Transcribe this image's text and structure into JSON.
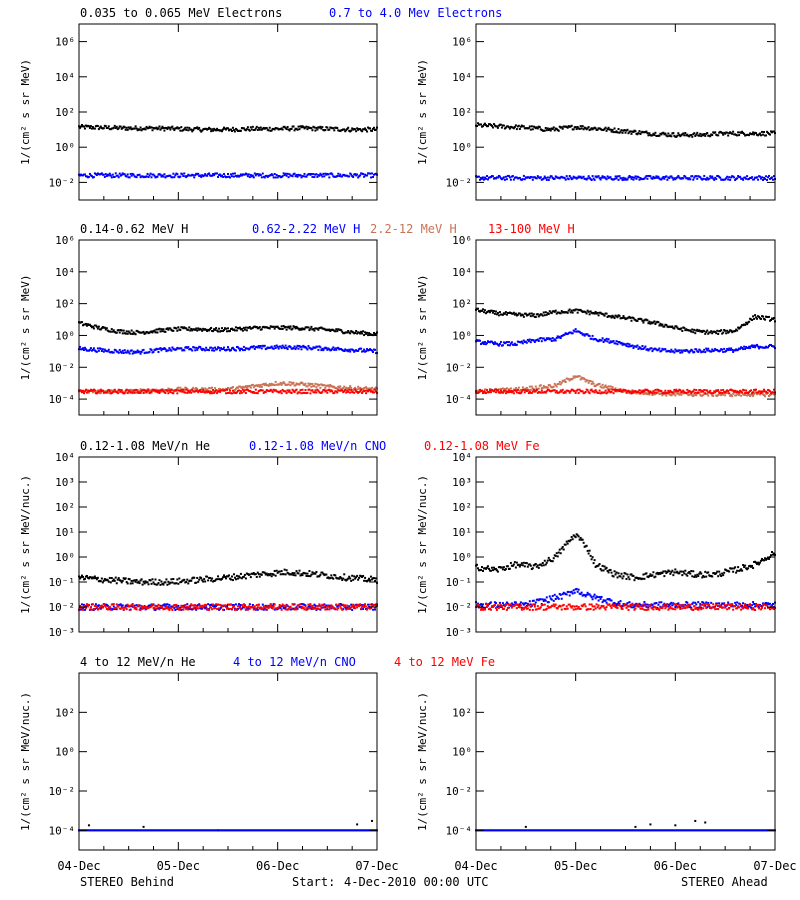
{
  "colors": {
    "black": "#000000",
    "blue": "#0000ff",
    "tan": "#c87355",
    "red": "#ff0000",
    "background": "#ffffff"
  },
  "footer": {
    "left_label": "STEREO Behind",
    "start_label": "Start:",
    "start_value": "4-Dec-2010 00:00 UTC",
    "right_label": "STEREO Ahead"
  },
  "chart_data": [
    {
      "id": "electrons",
      "type": "scatter",
      "ylabel": "1/(cm² s sr MeV)",
      "yscale": "log",
      "ylim": [
        0.001,
        10000000
      ],
      "yticks": [
        "10⁻²",
        "10⁰",
        "10²",
        "10⁴",
        "10⁶"
      ],
      "ytick_values": [
        0.01,
        1,
        100,
        10000,
        1000000
      ],
      "x_range_days": [
        0,
        3
      ],
      "xticks": [
        "04-Dec",
        "05-Dec",
        "06-Dec",
        "07-Dec"
      ],
      "legend": [
        {
          "text": "0.035 to 0.065 MeV Electrons",
          "color": "#000000"
        },
        {
          "text": "0.7 to 4.0 Mev Electrons",
          "color": "#0000ff"
        }
      ],
      "behind": [
        {
          "name": "0.035 to 0.065 MeV Electrons",
          "color": "#000000",
          "x": [
            0,
            0.25,
            0.5,
            0.75,
            1.0,
            1.25,
            1.5,
            1.75,
            2.0,
            2.25,
            2.5,
            2.75,
            3.0
          ],
          "y": [
            14,
            13,
            12,
            12,
            11,
            10,
            10,
            11,
            11,
            12,
            11,
            10,
            10
          ]
        },
        {
          "name": "0.7 to 4.0 Mev Electrons",
          "color": "#0000ff",
          "x": [
            0,
            0.5,
            1.0,
            1.5,
            2.0,
            2.5,
            3.0
          ],
          "y": [
            0.025,
            0.025,
            0.025,
            0.025,
            0.025,
            0.025,
            0.025
          ]
        }
      ],
      "ahead": [
        {
          "name": "0.035 to 0.065 MeV Electrons",
          "color": "#000000",
          "x": [
            0,
            0.25,
            0.5,
            0.75,
            1.0,
            1.25,
            1.5,
            1.75,
            2.0,
            2.25,
            2.5,
            2.75,
            3.0
          ],
          "y": [
            18,
            15,
            13,
            10,
            14,
            11,
            8,
            6,
            5,
            5,
            6,
            6,
            6
          ]
        },
        {
          "name": "0.7 to 4.0 Mev Electrons",
          "color": "#0000ff",
          "x": [
            0,
            0.5,
            1.0,
            1.5,
            2.0,
            2.5,
            3.0
          ],
          "y": [
            0.018,
            0.018,
            0.018,
            0.018,
            0.018,
            0.018,
            0.018
          ]
        }
      ]
    },
    {
      "id": "protons",
      "type": "scatter",
      "ylabel": "1/(cm² s sr MeV)",
      "yscale": "log",
      "ylim": [
        1e-05,
        1000000
      ],
      "yticks": [
        "10⁻⁴",
        "10⁻²",
        "10⁰",
        "10²",
        "10⁴",
        "10⁶"
      ],
      "ytick_values": [
        0.0001,
        0.01,
        1,
        100,
        10000,
        1000000
      ],
      "x_range_days": [
        0,
        3
      ],
      "xticks": [
        "04-Dec",
        "05-Dec",
        "06-Dec",
        "07-Dec"
      ],
      "legend": [
        {
          "text": "0.14-0.62 MeV H",
          "color": "#000000"
        },
        {
          "text": "0.62-2.22 MeV H",
          "color": "#0000ff"
        },
        {
          "text": "2.2-12 MeV H",
          "color": "#c87355"
        },
        {
          "text": "13-100 MeV H",
          "color": "#ff0000"
        }
      ],
      "behind": [
        {
          "name": "0.14-0.62 MeV H",
          "color": "#000000",
          "x": [
            0,
            0.2,
            0.4,
            0.6,
            0.8,
            1.0,
            1.2,
            1.4,
            1.6,
            1.8,
            2.0,
            2.2,
            2.4,
            2.6,
            2.8,
            3.0
          ],
          "y": [
            6,
            3,
            1.8,
            1.5,
            2,
            2.5,
            2.5,
            2.2,
            2.5,
            3,
            3,
            3,
            2.5,
            2,
            1.5,
            1.2
          ]
        },
        {
          "name": "0.62-2.22 MeV H",
          "color": "#0000ff",
          "x": [
            0,
            0.2,
            0.4,
            0.6,
            0.8,
            1.0,
            1.2,
            1.4,
            1.6,
            1.8,
            2.0,
            2.2,
            2.4,
            2.6,
            2.8,
            3.0
          ],
          "y": [
            0.15,
            0.12,
            0.1,
            0.09,
            0.12,
            0.14,
            0.15,
            0.14,
            0.15,
            0.17,
            0.18,
            0.18,
            0.16,
            0.14,
            0.12,
            0.1
          ]
        },
        {
          "name": "2.2-12 MeV H",
          "color": "#c87355",
          "x": [
            0,
            0.5,
            1.0,
            1.5,
            1.8,
            2.0,
            2.2,
            2.5,
            3.0
          ],
          "y": [
            0.0003,
            0.0003,
            0.0004,
            0.0004,
            0.0007,
            0.001,
            0.0009,
            0.0006,
            0.0004
          ]
        },
        {
          "name": "13-100 MeV H",
          "color": "#ff0000",
          "x": [
            0,
            0.5,
            1.0,
            1.5,
            2.0,
            2.5,
            3.0
          ],
          "y": [
            0.0003,
            0.0003,
            0.0003,
            0.0003,
            0.0003,
            0.0003,
            0.0003
          ]
        }
      ],
      "ahead": [
        {
          "name": "0.14-0.62 MeV H",
          "color": "#000000",
          "x": [
            0,
            0.2,
            0.4,
            0.6,
            0.8,
            1.0,
            1.2,
            1.4,
            1.6,
            1.8,
            2.0,
            2.2,
            2.4,
            2.6,
            2.8,
            3.0
          ],
          "y": [
            40,
            25,
            20,
            18,
            30,
            35,
            25,
            15,
            10,
            6,
            3,
            1.8,
            1.5,
            2,
            15,
            10
          ]
        },
        {
          "name": "0.62-2.22 MeV H",
          "color": "#0000ff",
          "x": [
            0,
            0.2,
            0.4,
            0.6,
            0.8,
            1.0,
            1.2,
            1.4,
            1.6,
            1.8,
            2.0,
            2.2,
            2.4,
            2.6,
            2.8,
            3.0
          ],
          "y": [
            0.4,
            0.3,
            0.3,
            0.5,
            0.6,
            2,
            0.6,
            0.4,
            0.2,
            0.12,
            0.1,
            0.11,
            0.12,
            0.12,
            0.2,
            0.2
          ]
        },
        {
          "name": "2.2-12 MeV H",
          "color": "#c87355",
          "x": [
            0,
            0.4,
            0.8,
            0.95,
            1.0,
            1.05,
            1.2,
            1.5,
            2.0,
            2.5,
            3.0
          ],
          "y": [
            0.0003,
            0.0004,
            0.0007,
            0.002,
            0.003,
            0.002,
            0.0008,
            0.0003,
            0.0002,
            0.0002,
            0.0002
          ]
        },
        {
          "name": "13-100 MeV H",
          "color": "#ff0000",
          "x": [
            0,
            0.5,
            1.0,
            1.5,
            2.0,
            2.5,
            3.0
          ],
          "y": [
            0.0003,
            0.0003,
            0.0003,
            0.0003,
            0.0003,
            0.0003,
            0.0003
          ]
        }
      ]
    },
    {
      "id": "heavy-ions-low",
      "type": "scatter",
      "ylabel": "1/(cm² s sr MeV/nuc.)",
      "yscale": "log",
      "ylim": [
        0.001,
        10000
      ],
      "yticks": [
        "10⁻³",
        "10⁻²",
        "10⁻¹",
        "10⁰",
        "10¹",
        "10²",
        "10³",
        "10⁴"
      ],
      "ytick_values": [
        0.001,
        0.01,
        0.1,
        1,
        10,
        100,
        1000,
        10000
      ],
      "x_range_days": [
        0,
        3
      ],
      "xticks": [
        "04-Dec",
        "05-Dec",
        "06-Dec",
        "07-Dec"
      ],
      "legend": [
        {
          "text": "0.12-1.08 MeV/n He",
          "color": "#000000"
        },
        {
          "text": "0.12-1.08 MeV/n CNO",
          "color": "#0000ff"
        },
        {
          "text": "0.12-1.08 MeV Fe",
          "color": "#ff0000"
        }
      ],
      "behind": [
        {
          "name": "0.12-1.08 MeV/n He",
          "color": "#000000",
          "x": [
            0,
            0.3,
            0.6,
            0.9,
            1.2,
            1.5,
            1.8,
            2.1,
            2.4,
            2.7,
            3.0
          ],
          "y": [
            0.15,
            0.12,
            0.1,
            0.1,
            0.12,
            0.15,
            0.2,
            0.25,
            0.2,
            0.15,
            0.12
          ]
        },
        {
          "name": "0.12-1.08 MeV/n CNO",
          "color": "#0000ff",
          "x": [
            0,
            0.5,
            1.0,
            1.5,
            2.0,
            2.5,
            3.0
          ],
          "y": [
            0.01,
            0.01,
            0.01,
            0.01,
            0.01,
            0.01,
            0.01
          ]
        },
        {
          "name": "0.12-1.08 MeV Fe",
          "color": "#ff0000",
          "x": [
            0,
            0.5,
            1.0,
            1.5,
            2.0,
            2.5,
            3.0
          ],
          "y": [
            0.01,
            0.01,
            0.01,
            0.01,
            0.01,
            0.01,
            0.01
          ]
        }
      ],
      "ahead": [
        {
          "name": "0.12-1.08 MeV/n He",
          "color": "#000000",
          "x": [
            0,
            0.2,
            0.4,
            0.6,
            0.8,
            0.9,
            1.0,
            1.1,
            1.2,
            1.4,
            1.6,
            1.8,
            2.0,
            2.2,
            2.4,
            2.6,
            2.8,
            3.0
          ],
          "y": [
            0.4,
            0.3,
            0.5,
            0.4,
            1,
            3,
            8,
            3,
            0.5,
            0.2,
            0.15,
            0.2,
            0.25,
            0.2,
            0.2,
            0.3,
            0.5,
            1.5
          ]
        },
        {
          "name": "0.12-1.08 MeV/n CNO",
          "color": "#0000ff",
          "x": [
            0,
            0.5,
            0.9,
            1.0,
            1.1,
            1.5,
            2.0,
            2.5,
            3.0
          ],
          "y": [
            0.012,
            0.012,
            0.03,
            0.05,
            0.03,
            0.012,
            0.012,
            0.012,
            0.012
          ]
        },
        {
          "name": "0.12-1.08 MeV Fe",
          "color": "#ff0000",
          "x": [
            0,
            0.5,
            1.0,
            1.5,
            2.0,
            2.5,
            3.0
          ],
          "y": [
            0.01,
            0.01,
            0.01,
            0.01,
            0.01,
            0.01,
            0.01
          ]
        }
      ]
    },
    {
      "id": "heavy-ions-high",
      "type": "scatter",
      "ylabel": "1/(cm² s sr MeV/nuc.)",
      "yscale": "log",
      "ylim": [
        1e-05,
        10000
      ],
      "yticks": [
        "10⁻⁴",
        "10⁻²",
        "10⁰",
        "10²"
      ],
      "ytick_values": [
        0.0001,
        0.01,
        1,
        100
      ],
      "x_range_days": [
        0,
        3
      ],
      "xticks": [
        "04-Dec",
        "05-Dec",
        "06-Dec",
        "07-Dec"
      ],
      "legend": [
        {
          "text": "4 to 12 MeV/n He",
          "color": "#000000"
        },
        {
          "text": "4 to 12 MeV/n CNO",
          "color": "#0000ff"
        },
        {
          "text": "4 to 12 MeV Fe",
          "color": "#ff0000"
        }
      ],
      "behind": [
        {
          "name": "4 to 12 MeV/n He",
          "color": "#000000",
          "x": [
            0.0,
            0.1,
            0.65,
            1.4,
            2.8,
            2.95
          ],
          "y": [
            0.0001,
            0.00018,
            0.00015,
            0.0001,
            0.0002,
            0.0003
          ]
        },
        {
          "name": "4 to 12 MeV/n CNO",
          "color": "#0000ff",
          "x": [
            0,
            0.5,
            1.0,
            1.5,
            2.0,
            2.5,
            3.0
          ],
          "y": [
            0.0001,
            0.0001,
            0.0001,
            0.0001,
            0.0001,
            0.0001,
            0.0001
          ]
        }
      ],
      "ahead": [
        {
          "name": "4 to 12 MeV/n He",
          "color": "#000000",
          "x": [
            0.5,
            1.6,
            1.75,
            2.0,
            2.2,
            2.3
          ],
          "y": [
            0.00015,
            0.00015,
            0.0002,
            0.00018,
            0.0003,
            0.00025
          ]
        },
        {
          "name": "4 to 12 MeV/n CNO",
          "color": "#0000ff",
          "x": [
            0,
            0.5,
            1.0,
            1.5,
            2.0,
            2.5,
            3.0
          ],
          "y": [
            0.0001,
            0.0001,
            0.0001,
            0.0001,
            0.0001,
            0.0001,
            0.0001
          ]
        }
      ]
    }
  ]
}
